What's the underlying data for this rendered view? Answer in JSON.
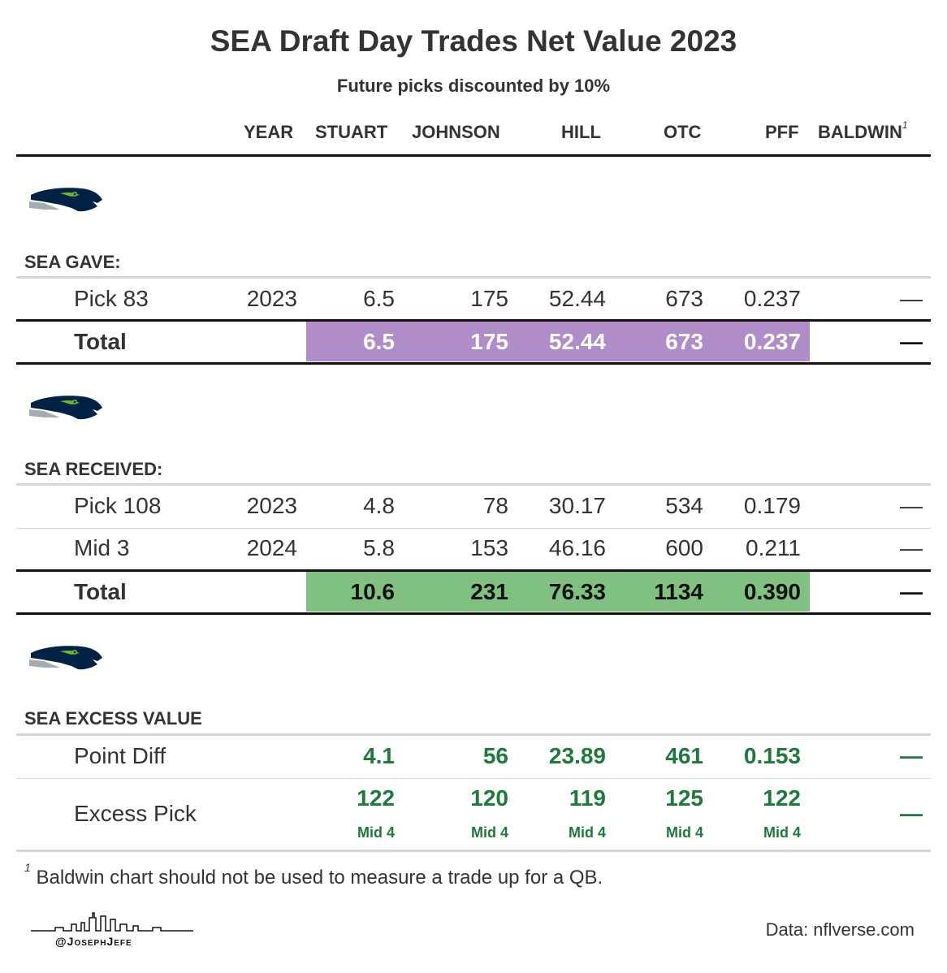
{
  "title": "SEA Draft Day Trades Net Value 2023",
  "subtitle": "Future picks discounted by 10%",
  "columns": [
    "YEAR",
    "STUART",
    "JOHNSON",
    "HILL",
    "OTC",
    "PFF",
    "BALDWIN"
  ],
  "baldwin_footnote_marker": "1",
  "sections": {
    "gave": {
      "label": "SEA GAVE:",
      "rows": [
        {
          "label": "Pick 83",
          "year": "2023",
          "stuart": "6.5",
          "johnson": "175",
          "hill": "52.44",
          "otc": "673",
          "pff": "0.237",
          "baldwin": "—"
        }
      ],
      "total": {
        "label": "Total",
        "stuart": "6.5",
        "johnson": "175",
        "hill": "52.44",
        "otc": "673",
        "pff": "0.237",
        "baldwin": "—"
      }
    },
    "received": {
      "label": "SEA RECEIVED:",
      "rows": [
        {
          "label": "Pick 108",
          "year": "2023",
          "stuart": "4.8",
          "johnson": "78",
          "hill": "30.17",
          "otc": "534",
          "pff": "0.179",
          "baldwin": "—"
        },
        {
          "label": "Mid 3",
          "year": "2024",
          "stuart": "5.8",
          "johnson": "153",
          "hill": "46.16",
          "otc": "600",
          "pff": "0.211",
          "baldwin": "—"
        }
      ],
      "total": {
        "label": "Total",
        "stuart": "10.6",
        "johnson": "231",
        "hill": "76.33",
        "otc": "1134",
        "pff": "0.390",
        "baldwin": "—"
      }
    },
    "excess": {
      "label": "SEA EXCESS VALUE",
      "point_diff": {
        "label": "Point Diff",
        "stuart": "4.1",
        "johnson": "56",
        "hill": "23.89",
        "otc": "461",
        "pff": "0.153",
        "baldwin": "—"
      },
      "excess_pick": {
        "label": "Excess Pick",
        "stuart": "122",
        "johnson": "120",
        "hill": "119",
        "otc": "125",
        "pff": "122",
        "stuart_round": "Mid 4",
        "johnson_round": "Mid 4",
        "hill_round": "Mid 4",
        "otc_round": "Mid 4",
        "pff_round": "Mid 4",
        "baldwin": "—"
      }
    }
  },
  "footnote": {
    "marker": "1",
    "text": "Baldwin chart should not be used to measure a trade up for a QB."
  },
  "credit": "@JosephJefe",
  "source": "Data: nflverse.com",
  "colors": {
    "gave_total_fill": "#b08cc8",
    "received_total_fill": "#80c080",
    "excess_text": "#1d7a3a",
    "logo_navy": "#002244",
    "logo_green": "#69be28",
    "logo_grey": "#a5acaf"
  }
}
